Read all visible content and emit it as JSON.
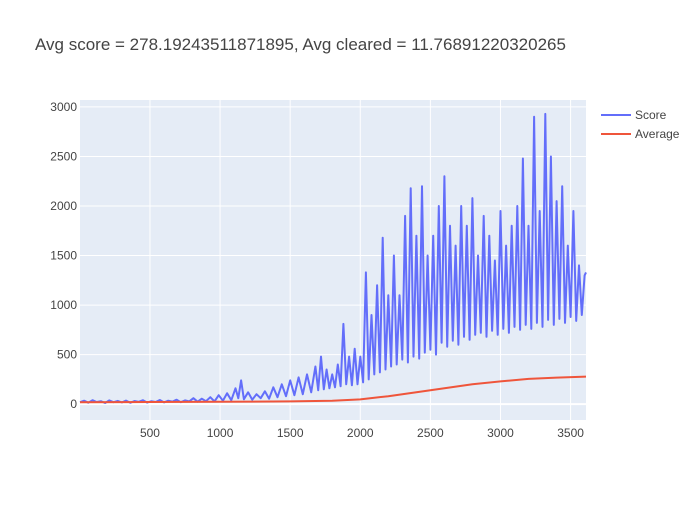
{
  "chart_data": {
    "type": "line",
    "title": "Avg score = 278.19243511871895, Avg cleared = 11.76891220320265",
    "xlabel": "",
    "ylabel": "",
    "xlim": [
      1,
      3610
    ],
    "ylim": [
      -160,
      3070
    ],
    "x_ticks": [
      500,
      1000,
      1500,
      2000,
      2500,
      3000,
      3500
    ],
    "y_ticks": [
      0,
      500,
      1000,
      1500,
      2000,
      2500,
      3000
    ],
    "grid": true,
    "legend_position": "top-right",
    "colors": {
      "plot_bg": "#e5ecf6",
      "grid": "#ffffff",
      "text": "#444444"
    },
    "series": [
      {
        "name": "Score",
        "color": "#636efa",
        "points": [
          [
            1,
            20
          ],
          [
            30,
            35
          ],
          [
            60,
            15
          ],
          [
            90,
            40
          ],
          [
            120,
            22
          ],
          [
            150,
            30
          ],
          [
            180,
            12
          ],
          [
            210,
            38
          ],
          [
            240,
            20
          ],
          [
            270,
            33
          ],
          [
            300,
            18
          ],
          [
            330,
            36
          ],
          [
            360,
            14
          ],
          [
            390,
            32
          ],
          [
            420,
            24
          ],
          [
            450,
            40
          ],
          [
            480,
            16
          ],
          [
            510,
            30
          ],
          [
            540,
            22
          ],
          [
            570,
            42
          ],
          [
            600,
            18
          ],
          [
            630,
            35
          ],
          [
            660,
            26
          ],
          [
            690,
            45
          ],
          [
            720,
            20
          ],
          [
            750,
            38
          ],
          [
            780,
            28
          ],
          [
            810,
            60
          ],
          [
            840,
            25
          ],
          [
            870,
            55
          ],
          [
            900,
            30
          ],
          [
            930,
            70
          ],
          [
            960,
            28
          ],
          [
            990,
            90
          ],
          [
            1020,
            35
          ],
          [
            1050,
            110
          ],
          [
            1080,
            40
          ],
          [
            1110,
            160
          ],
          [
            1130,
            60
          ],
          [
            1150,
            240
          ],
          [
            1170,
            50
          ],
          [
            1200,
            120
          ],
          [
            1230,
            45
          ],
          [
            1260,
            100
          ],
          [
            1290,
            60
          ],
          [
            1320,
            130
          ],
          [
            1350,
            55
          ],
          [
            1380,
            170
          ],
          [
            1410,
            70
          ],
          [
            1440,
            200
          ],
          [
            1470,
            80
          ],
          [
            1500,
            240
          ],
          [
            1530,
            90
          ],
          [
            1560,
            270
          ],
          [
            1590,
            100
          ],
          [
            1620,
            300
          ],
          [
            1650,
            120
          ],
          [
            1680,
            380
          ],
          [
            1700,
            140
          ],
          [
            1720,
            480
          ],
          [
            1740,
            150
          ],
          [
            1760,
            350
          ],
          [
            1780,
            160
          ],
          [
            1800,
            300
          ],
          [
            1820,
            170
          ],
          [
            1840,
            400
          ],
          [
            1860,
            180
          ],
          [
            1880,
            810
          ],
          [
            1900,
            200
          ],
          [
            1920,
            480
          ],
          [
            1940,
            190
          ],
          [
            1960,
            560
          ],
          [
            1980,
            200
          ],
          [
            2000,
            480
          ],
          [
            2020,
            220
          ],
          [
            2040,
            1330
          ],
          [
            2060,
            250
          ],
          [
            2080,
            900
          ],
          [
            2100,
            300
          ],
          [
            2120,
            1200
          ],
          [
            2140,
            320
          ],
          [
            2160,
            1680
          ],
          [
            2180,
            350
          ],
          [
            2200,
            1100
          ],
          [
            2220,
            380
          ],
          [
            2240,
            1500
          ],
          [
            2260,
            400
          ],
          [
            2280,
            1100
          ],
          [
            2300,
            450
          ],
          [
            2320,
            1900
          ],
          [
            2340,
            420
          ],
          [
            2360,
            2180
          ],
          [
            2380,
            480
          ],
          [
            2400,
            1700
          ],
          [
            2420,
            460
          ],
          [
            2440,
            2200
          ],
          [
            2460,
            520
          ],
          [
            2480,
            1500
          ],
          [
            2500,
            550
          ],
          [
            2520,
            1700
          ],
          [
            2540,
            500
          ],
          [
            2560,
            2000
          ],
          [
            2580,
            620
          ],
          [
            2600,
            2300
          ],
          [
            2620,
            580
          ],
          [
            2640,
            1800
          ],
          [
            2660,
            640
          ],
          [
            2680,
            1600
          ],
          [
            2700,
            600
          ],
          [
            2720,
            2000
          ],
          [
            2740,
            680
          ],
          [
            2760,
            1800
          ],
          [
            2780,
            650
          ],
          [
            2800,
            2080
          ],
          [
            2820,
            700
          ],
          [
            2840,
            1500
          ],
          [
            2860,
            720
          ],
          [
            2880,
            1900
          ],
          [
            2900,
            680
          ],
          [
            2920,
            1700
          ],
          [
            2940,
            740
          ],
          [
            2960,
            1450
          ],
          [
            2980,
            700
          ],
          [
            3000,
            1950
          ],
          [
            3020,
            760
          ],
          [
            3040,
            1600
          ],
          [
            3060,
            720
          ],
          [
            3080,
            1800
          ],
          [
            3100,
            780
          ],
          [
            3120,
            2000
          ],
          [
            3140,
            750
          ],
          [
            3160,
            2480
          ],
          [
            3180,
            800
          ],
          [
            3200,
            1800
          ],
          [
            3220,
            760
          ],
          [
            3240,
            2900
          ],
          [
            3260,
            820
          ],
          [
            3280,
            1950
          ],
          [
            3300,
            780
          ],
          [
            3320,
            2930
          ],
          [
            3340,
            850
          ],
          [
            3360,
            2500
          ],
          [
            3380,
            800
          ],
          [
            3400,
            2050
          ],
          [
            3420,
            860
          ],
          [
            3440,
            2200
          ],
          [
            3460,
            820
          ],
          [
            3480,
            1600
          ],
          [
            3500,
            880
          ],
          [
            3520,
            1950
          ],
          [
            3540,
            840
          ],
          [
            3560,
            1400
          ],
          [
            3580,
            900
          ],
          [
            3600,
            1300
          ],
          [
            3610,
            1330
          ]
        ]
      },
      {
        "name": "Average",
        "color": "#ef553b",
        "points": [
          [
            1,
            20
          ],
          [
            500,
            22
          ],
          [
            1000,
            24
          ],
          [
            1500,
            28
          ],
          [
            1800,
            35
          ],
          [
            2000,
            48
          ],
          [
            2200,
            80
          ],
          [
            2400,
            120
          ],
          [
            2600,
            160
          ],
          [
            2800,
            200
          ],
          [
            3000,
            230
          ],
          [
            3200,
            255
          ],
          [
            3400,
            268
          ],
          [
            3610,
            278
          ]
        ]
      }
    ]
  }
}
